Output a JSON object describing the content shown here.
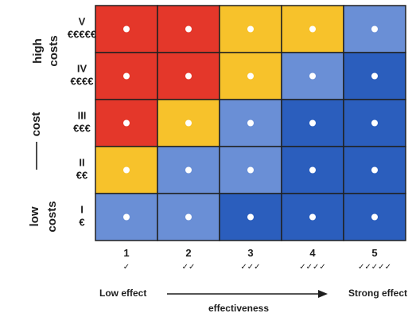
{
  "chart_data": {
    "type": "heatmap",
    "x_levels": [
      {
        "value": "1",
        "checks": "✓"
      },
      {
        "value": "2",
        "checks": "✓✓"
      },
      {
        "value": "3",
        "checks": "✓✓✓"
      },
      {
        "value": "4",
        "checks": "✓✓✓✓"
      },
      {
        "value": "5",
        "checks": "✓✓✓✓✓"
      }
    ],
    "y_levels": [
      {
        "roman": "V",
        "euros": "€€€€€"
      },
      {
        "roman": "IV",
        "euros": "€€€€"
      },
      {
        "roman": "III",
        "euros": "€€€"
      },
      {
        "roman": "II",
        "euros": "€€"
      },
      {
        "roman": "I",
        "euros": "€"
      }
    ],
    "colors": {
      "red": "#e4372a",
      "yellow": "#f7c22b",
      "light_blue": "#6a8fd6",
      "dark_blue": "#2b5ebd"
    },
    "cells": [
      [
        "red",
        "red",
        "yellow",
        "yellow",
        "light_blue"
      ],
      [
        "red",
        "red",
        "yellow",
        "light_blue",
        "dark_blue"
      ],
      [
        "red",
        "yellow",
        "light_blue",
        "dark_blue",
        "dark_blue"
      ],
      [
        "yellow",
        "light_blue",
        "light_blue",
        "dark_blue",
        "dark_blue"
      ],
      [
        "light_blue",
        "light_blue",
        "dark_blue",
        "dark_blue",
        "dark_blue"
      ]
    ],
    "y_axis": {
      "label": "cost",
      "top_label": "high costs",
      "bottom_label": "low costs"
    },
    "x_axis": {
      "label": "effectiveness",
      "left_label": "Low effect",
      "right_label": "Strong effect"
    }
  }
}
